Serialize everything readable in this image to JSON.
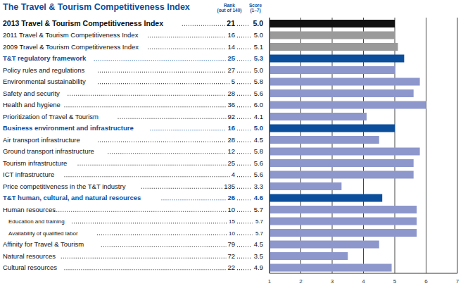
{
  "chart_data": {
    "type": "bar",
    "orientation": "horizontal",
    "title": "The Travel & Tourism Competitiveness Index",
    "rank_label": [
      "Rank",
      "(out of 140)"
    ],
    "score_label": [
      "Score",
      "(1–7)"
    ],
    "categories": [
      "2013 Travel & Tourism Competitiveness Index",
      "2011 Travel & Tourism Competitiveness Index",
      "2009 Travel & Tourism Competitiveness Index",
      "T&T regulatory framework",
      "Policy rules and regulations",
      "Environmental sustainability",
      "Safety and security",
      "Health and hygiene",
      "Prioritization of Travel & Tourism",
      "Business environment and infrastructure",
      "Air transport infrastructure",
      "Ground transport infrastructure",
      "Tourism infrastructure",
      "ICT infrastructure",
      "Price competitiveness in the T&T industry",
      "T&T human, cultural, and natural resources",
      "Human resources",
      "Education and training",
      "Availability of qualified labor",
      "Affinity for Travel & Tourism",
      "Natural resources",
      "Cultural resources"
    ],
    "ranks": [
      21,
      16,
      14,
      25,
      27,
      5,
      28,
      36,
      92,
      16,
      28,
      12,
      25,
      4,
      135,
      26,
      10,
      15,
      10,
      79,
      72,
      22
    ],
    "values": [
      5.0,
      5.0,
      5.1,
      5.3,
      5.0,
      5.8,
      5.6,
      6.0,
      4.1,
      5.0,
      4.5,
      5.8,
      5.6,
      5.6,
      3.3,
      4.6,
      5.7,
      5.7,
      5.7,
      4.5,
      3.5,
      4.9
    ],
    "value_labels": [
      "5.0",
      "5.0",
      "5.1",
      "5.3",
      "5.0",
      "5.8",
      "5.6",
      "6.0",
      "4.1",
      "5.0",
      "4.5",
      "5.8",
      "5.6",
      "5.6",
      "3.3",
      "4.6",
      "5.7",
      "5.7",
      "5.7",
      "4.5",
      "3.5",
      "4.9"
    ],
    "colors": [
      "#111111",
      "#9a9a9a",
      "#9a9a9a",
      "#0b4f9c",
      "#8d97cc",
      "#8d97cc",
      "#8d97cc",
      "#8d97cc",
      "#8d97cc",
      "#0b4f9c",
      "#8d97cc",
      "#8d97cc",
      "#8d97cc",
      "#8d97cc",
      "#8d97cc",
      "#0b4f9c",
      "#8d97cc",
      "#8d97cc",
      "#8d97cc",
      "#8d97cc",
      "#8d97cc",
      "#8d97cc"
    ],
    "xlim": [
      1,
      7
    ],
    "xticks": [
      1,
      2,
      3,
      4,
      5,
      6,
      7
    ],
    "grid": true
  }
}
